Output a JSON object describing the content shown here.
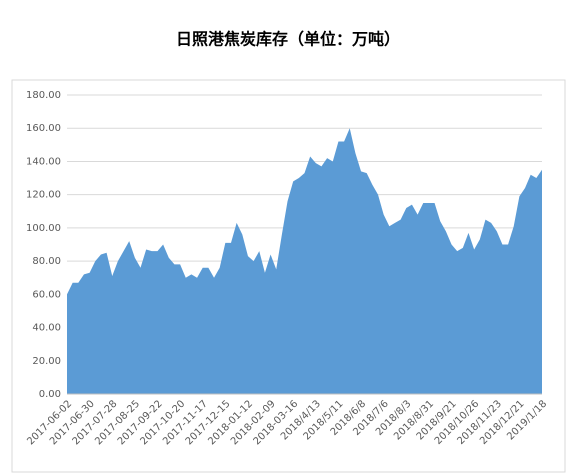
{
  "chart_data": {
    "type": "area",
    "title": "日照港焦炭库存（单位：万吨）",
    "categories": [
      "2017-06-02",
      null,
      null,
      null,
      "2017-06-30",
      null,
      null,
      null,
      "2017-07-28",
      null,
      null,
      null,
      "2017-08-25",
      null,
      null,
      null,
      "2017-09-22",
      null,
      null,
      null,
      "2017-10-20",
      null,
      null,
      null,
      "2017-11-17",
      null,
      null,
      null,
      "2017-12-15",
      null,
      null,
      null,
      "2018-01-12",
      null,
      null,
      null,
      "2018-02-09",
      null,
      null,
      null,
      "2018-03-16",
      null,
      null,
      null,
      "2018/4/13",
      null,
      null,
      null,
      "2018/5/11",
      null,
      null,
      null,
      "2018/6/8",
      null,
      null,
      null,
      "2018/7/6",
      null,
      null,
      null,
      "2018/8/3",
      null,
      null,
      null,
      "2018/8/31",
      null,
      null,
      null,
      "2018/9/21",
      null,
      null,
      null,
      "2018/10/26",
      null,
      null,
      null,
      "2018/11/23",
      null,
      null,
      null,
      "2018/12/21",
      null,
      null,
      null,
      "2019/1/18"
    ],
    "values": [
      60,
      67,
      67,
      72,
      73,
      80,
      84,
      85,
      71,
      80,
      86,
      92,
      82,
      76,
      87,
      86,
      86,
      90,
      82,
      78,
      78,
      70,
      72,
      70,
      76,
      76,
      70,
      76,
      91,
      91,
      103,
      96,
      83,
      80,
      86,
      73,
      84,
      75,
      96,
      116,
      128,
      130,
      133,
      143,
      139,
      137,
      142,
      140,
      152,
      152,
      160,
      145,
      134,
      133,
      126,
      120,
      108,
      101,
      103,
      105,
      112,
      114,
      108,
      115,
      115,
      115,
      104,
      98,
      90,
      86,
      88,
      97,
      87,
      93,
      105,
      103,
      98,
      90,
      90,
      101,
      119,
      124,
      132,
      130,
      135
    ],
    "color": "#5b9bd5",
    "ylim": [
      0,
      180
    ],
    "yticks": [
      {
        "value": 0,
        "label": "0.00"
      },
      {
        "value": 20,
        "label": "20.00"
      },
      {
        "value": 40,
        "label": "40.00"
      },
      {
        "value": 60,
        "label": "60.00"
      },
      {
        "value": 80,
        "label": "80.00"
      },
      {
        "value": 100,
        "label": "100.00"
      },
      {
        "value": 120,
        "label": "120.00"
      },
      {
        "value": 140,
        "label": "140.00"
      },
      {
        "value": 160,
        "label": "160.00"
      },
      {
        "value": 180,
        "label": "180.00"
      }
    ],
    "grid": true
  }
}
